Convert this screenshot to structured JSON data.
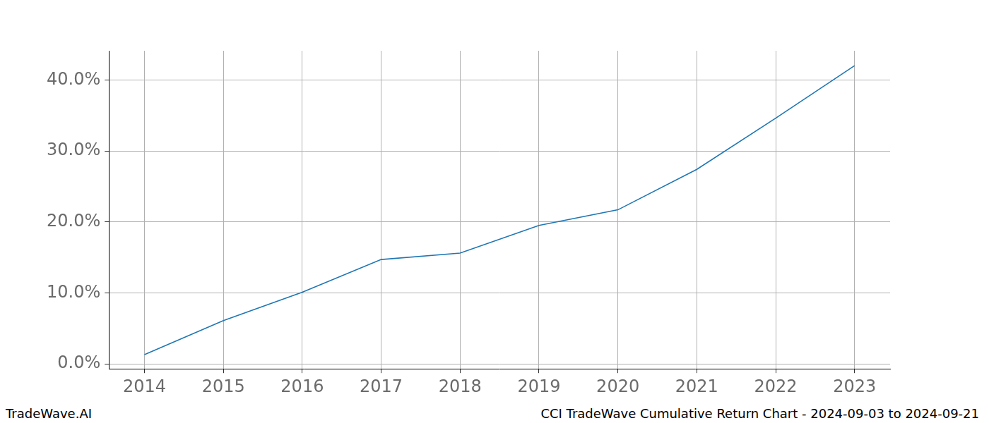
{
  "chart_data": {
    "type": "line",
    "annotations": [
      "TradeWave.AI",
      "CCI TradeWave Cumulative Return Chart - 2024-09-03 to 2024-09-21"
    ],
    "x": [
      2014,
      2015,
      2016,
      2017,
      2018,
      2019,
      2020,
      2021,
      2022,
      2023
    ],
    "values": [
      1.3,
      6.1,
      10.1,
      14.7,
      15.6,
      19.5,
      21.7,
      27.4,
      34.6,
      42.0
    ],
    "color": "#1f77b4",
    "xlim": [
      2013.55,
      2023.45
    ],
    "xticks": [
      2014,
      2015,
      2016,
      2017,
      2018,
      2019,
      2020,
      2021,
      2022,
      2023
    ],
    "ylim": [
      -0.7,
      44.1
    ],
    "yticks": [
      {
        "value": 0,
        "label": "0.0%"
      },
      {
        "value": 10,
        "label": "10.0%"
      },
      {
        "value": 20,
        "label": "20.0%"
      },
      {
        "value": 30,
        "label": "30.0%"
      },
      {
        "value": 40,
        "label": "40.0%"
      }
    ],
    "grid": true
  }
}
